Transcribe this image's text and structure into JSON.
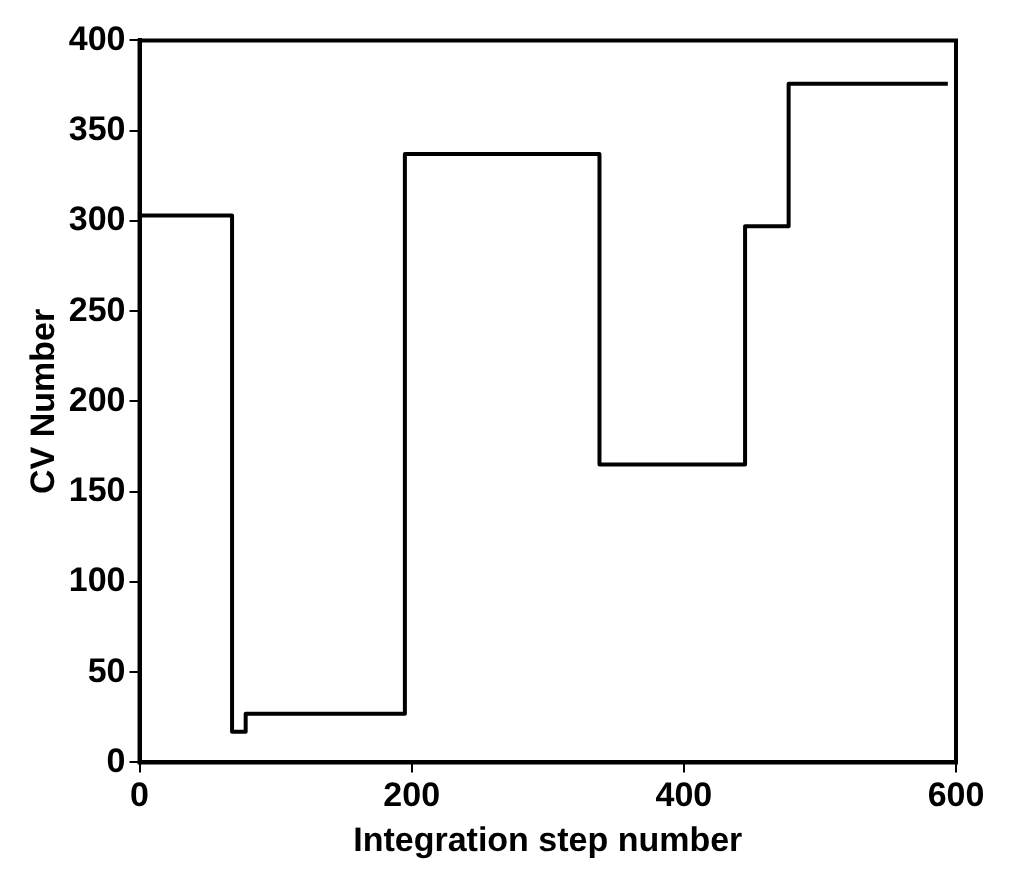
{
  "chart_data": {
    "type": "step",
    "xlabel": "Integration step number",
    "ylabel": "CV Number",
    "x": [
      0,
      68,
      78,
      195,
      338,
      445,
      477,
      594
    ],
    "values": [
      303,
      17,
      27,
      337,
      165,
      297,
      376,
      376
    ],
    "color": "#000000",
    "xlim": [
      0,
      600
    ],
    "xticks": [
      0,
      200,
      400,
      600
    ],
    "ylim": [
      0,
      400
    ],
    "yticks": [
      0,
      50,
      100,
      150,
      200,
      250,
      300,
      350,
      400
    ],
    "grid": false,
    "legend": false,
    "marker": "none",
    "line_style": "solid"
  }
}
